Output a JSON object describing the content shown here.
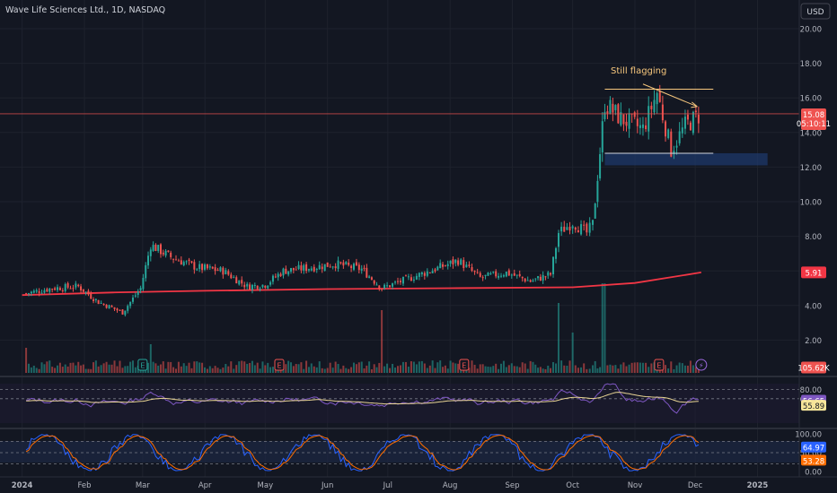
{
  "chart_data": {
    "type": "candlestick",
    "title": "Wave Life Sciences Ltd., 1D, NASDAQ",
    "currency": "USD",
    "time_labels": [
      "2024",
      "Feb",
      "Mar",
      "Apr",
      "May",
      "Jun",
      "Jul",
      "Aug",
      "Sep",
      "Oct",
      "Nov",
      "Dec",
      "2025"
    ],
    "price_axis": {
      "ticks": [
        "20.00",
        "18.00",
        "16.00",
        "14.00",
        "12.00",
        "10.00",
        "8.00",
        "6.00",
        "4.00",
        "2.00"
      ],
      "range": [
        0,
        21
      ]
    },
    "price_series": [
      {
        "date": "2024-01-03",
        "close": 4.7
      },
      {
        "date": "2024-01-16",
        "close": 5.0
      },
      {
        "date": "2024-01-29",
        "close": 5.1
      },
      {
        "date": "2024-02-08",
        "close": 4.2
      },
      {
        "date": "2024-02-20",
        "close": 3.6
      },
      {
        "date": "2024-02-29",
        "close": 5.0
      },
      {
        "date": "2024-03-05",
        "close": 7.5
      },
      {
        "date": "2024-03-15",
        "close": 6.8
      },
      {
        "date": "2024-03-28",
        "close": 6.2
      },
      {
        "date": "2024-04-10",
        "close": 6.0
      },
      {
        "date": "2024-04-22",
        "close": 5.1
      },
      {
        "date": "2024-05-01",
        "close": 5.2
      },
      {
        "date": "2024-05-10",
        "close": 6.0
      },
      {
        "date": "2024-05-24",
        "close": 6.2
      },
      {
        "date": "2024-06-05",
        "close": 6.4
      },
      {
        "date": "2024-06-18",
        "close": 6.1
      },
      {
        "date": "2024-06-28",
        "close": 5.0
      },
      {
        "date": "2024-07-10",
        "close": 5.5
      },
      {
        "date": "2024-07-22",
        "close": 6.0
      },
      {
        "date": "2024-08-05",
        "close": 6.6
      },
      {
        "date": "2024-08-16",
        "close": 5.6
      },
      {
        "date": "2024-08-29",
        "close": 5.9
      },
      {
        "date": "2024-09-10",
        "close": 5.4
      },
      {
        "date": "2024-09-20",
        "close": 5.8
      },
      {
        "date": "2024-09-24",
        "close": 8.2
      },
      {
        "date": "2024-10-01",
        "close": 8.8
      },
      {
        "date": "2024-10-08",
        "close": 8.2
      },
      {
        "date": "2024-10-11",
        "close": 8.7
      },
      {
        "date": "2024-10-17",
        "close": 15.7
      },
      {
        "date": "2024-10-25",
        "close": 14.8
      },
      {
        "date": "2024-11-05",
        "close": 14.2
      },
      {
        "date": "2024-11-12",
        "close": 16.3
      },
      {
        "date": "2024-11-19",
        "close": 13.0
      },
      {
        "date": "2024-11-26",
        "close": 14.4
      },
      {
        "date": "2024-12-04",
        "close": 15.08
      }
    ],
    "moving_average": {
      "value": "5.91",
      "points": [
        [
          "2024-01-01",
          4.6
        ],
        [
          "2024-02-15",
          4.75
        ],
        [
          "2024-04-01",
          4.85
        ],
        [
          "2024-06-01",
          4.95
        ],
        [
          "2024-08-01",
          5.0
        ],
        [
          "2024-10-01",
          5.05
        ],
        [
          "2024-11-01",
          5.3
        ],
        [
          "2024-12-04",
          5.91
        ]
      ]
    },
    "last_price": {
      "value": "15.08",
      "countdown": "05:10:11"
    },
    "volume_label": "105.62K",
    "event_markers": [
      {
        "date": "2024-03-01",
        "label": "E"
      },
      {
        "date": "2024-05-08",
        "label": "E"
      },
      {
        "date": "2024-08-08",
        "label": "E"
      },
      {
        "date": "2024-11-13",
        "label": "E"
      },
      {
        "date": "2024-12-04",
        "label": "⚡"
      }
    ],
    "annotation": {
      "text": "Still flagging"
    },
    "rsi": {
      "ticks": [
        "80.00",
        "60.00"
      ],
      "value": "56.65",
      "ma_value": "55.89"
    },
    "stoch": {
      "ticks": [
        "100.00",
        "50.00",
        "0.00"
      ],
      "k_value": "64.97",
      "d_value": "53.28"
    },
    "colors": {
      "up": "#26a69a",
      "down": "#ef5350",
      "ma": "#f23645",
      "background": "#131722",
      "annotation": "#f7c77d",
      "rsi": "#7e57c2",
      "stoch_k": "#2962ff",
      "stoch_d": "#ff6d00"
    }
  }
}
